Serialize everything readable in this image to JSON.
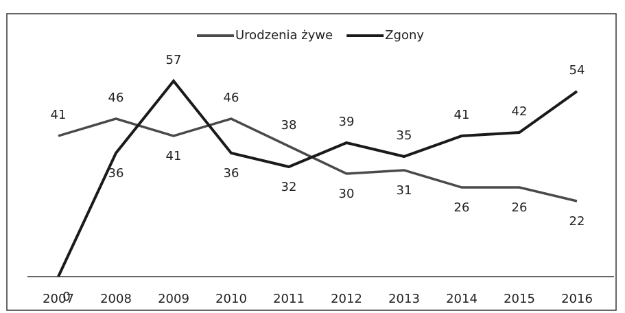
{
  "chart_data": {
    "type": "line",
    "categories": [
      "2007",
      "2008",
      "2009",
      "2010",
      "2011",
      "2012",
      "2013",
      "2014",
      "2015",
      "2016"
    ],
    "series": [
      {
        "name": "Urodzenia żywe",
        "color": "#4a4a4a",
        "values": [
          41,
          46,
          41,
          46,
          38,
          30,
          31,
          26,
          26,
          22
        ]
      },
      {
        "name": "Zgony",
        "color": "#1a1a1a",
        "values": [
          0,
          36,
          57,
          36,
          32,
          39,
          35,
          41,
          42,
          54
        ]
      }
    ],
    "ylim": [
      0,
      70
    ],
    "legend": "top"
  }
}
